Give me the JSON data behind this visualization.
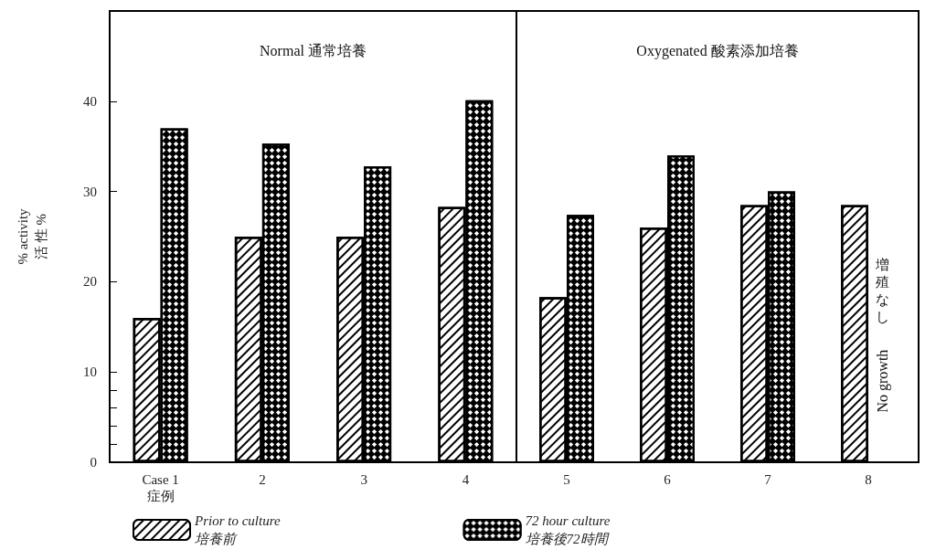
{
  "chart_data": [
    {
      "type": "bar",
      "ylabel": "% activity\n活 性 %",
      "categories": [
        "Case 1\n症例",
        "2",
        "3",
        "4"
      ],
      "series": [
        {
          "name": "Prior to culture\n培養前",
          "values": [
            16,
            25,
            25,
            28.3
          ]
        },
        {
          "name": "72 hour culture\n培養後72時間",
          "values": [
            37,
            35.3,
            32.8,
            40.1
          ]
        }
      ],
      "ylim": [
        0,
        50
      ],
      "yticks": [
        0,
        {
          "value": 2,
          "label": null
        },
        {
          "value": 4,
          "label": null
        },
        {
          "value": 6,
          "label": null
        },
        {
          "value": 8,
          "label": null
        },
        10,
        20,
        30,
        40
      ],
      "grid": false,
      "legend": "bottom",
      "annotations": [
        "Normal 通常培養"
      ]
    },
    {
      "type": "bar",
      "categories": [
        "5",
        "6",
        "7",
        "8"
      ],
      "series": [
        {
          "values": [
            18.3,
            26,
            28.5,
            28.5
          ]
        },
        {
          "values": [
            27.4,
            34,
            30,
            null
          ]
        }
      ],
      "ylim": [
        0,
        50
      ],
      "tick_labels": "x",
      "grid": false,
      "annotations": [
        "Oxygenated 酸素添加培養",
        {
          "text": "増殖なし",
          "x": "8",
          "y": 19
        },
        {
          "text": "No growth",
          "x": "8",
          "y": 9
        }
      ]
    }
  ]
}
